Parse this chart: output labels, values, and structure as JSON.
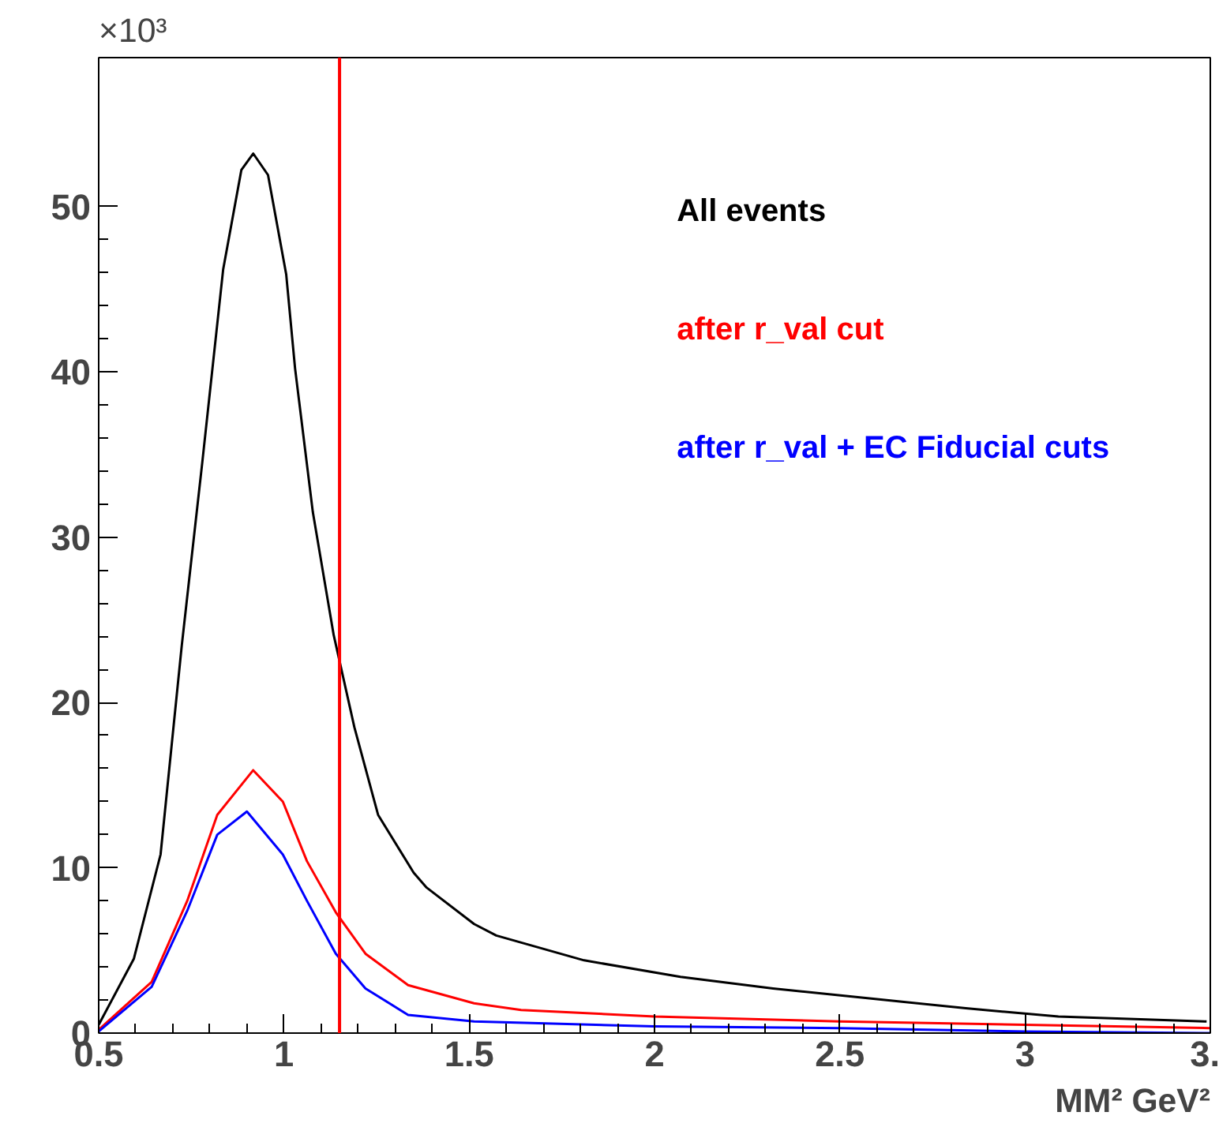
{
  "chart_data": {
    "type": "line",
    "xlabel": "MM² GeV²",
    "annotations": [
      "×10³"
    ],
    "xlim": [
      0.5,
      3.5
    ],
    "xticks": [
      0.5,
      1,
      1.5,
      2,
      2.5,
      3,
      {
        "value": 3.5,
        "label": "3."
      }
    ],
    "ylim": [
      0,
      59
    ],
    "yticks": [
      0,
      10,
      20,
      30,
      40,
      50
    ],
    "grid": false,
    "legend": "right",
    "series": [
      {
        "name": "All events",
        "color": "#000000",
        "x": [
          0.5,
          0.595,
          0.667,
          0.724,
          0.78,
          0.836,
          0.885,
          0.917,
          0.957,
          1.006,
          1.03,
          1.078,
          1.134,
          1.19,
          1.254,
          1.35,
          1.385,
          1.513,
          1.573,
          1.81,
          2.07,
          2.32,
          2.58,
          2.84,
          3.09,
          3.49
        ],
        "values": [
          0.5,
          4.5,
          10.8,
          23.4,
          34.6,
          46.2,
          52.2,
          53.2,
          51.9,
          45.9,
          40.2,
          31.5,
          24.1,
          18.5,
          13.2,
          9.7,
          8.8,
          6.6,
          5.9,
          4.4,
          3.4,
          2.7,
          2.1,
          1.5,
          1.0,
          0.7
        ]
      },
      {
        "name": "after r_val cut",
        "color": "#ff0000",
        "x": [
          0.5,
          0.643,
          0.739,
          0.82,
          0.917,
          0.997,
          1.062,
          1.14,
          1.22,
          1.335,
          1.513,
          1.64,
          2.0,
          2.5,
          3.0,
          3.5
        ],
        "values": [
          0.2,
          3.1,
          8.0,
          13.2,
          15.9,
          14.0,
          10.4,
          7.3,
          4.8,
          2.9,
          1.8,
          1.4,
          1.0,
          0.7,
          0.5,
          0.3
        ]
      },
      {
        "name": "after r_val + EC Fiducial cuts",
        "color": "#0000ff",
        "x": [
          0.5,
          0.643,
          0.739,
          0.82,
          0.9,
          0.997,
          1.062,
          1.14,
          1.22,
          1.335,
          1.513,
          2.0,
          2.5,
          3.0,
          3.5
        ],
        "values": [
          0.1,
          2.8,
          7.4,
          12.0,
          13.4,
          10.8,
          8.0,
          4.8,
          2.7,
          1.1,
          0.7,
          0.4,
          0.3,
          0.1,
          0.0
        ]
      }
    ],
    "ref_lines": [
      {
        "axis": "x",
        "value": 1.15,
        "color": "#ff0000"
      }
    ]
  }
}
